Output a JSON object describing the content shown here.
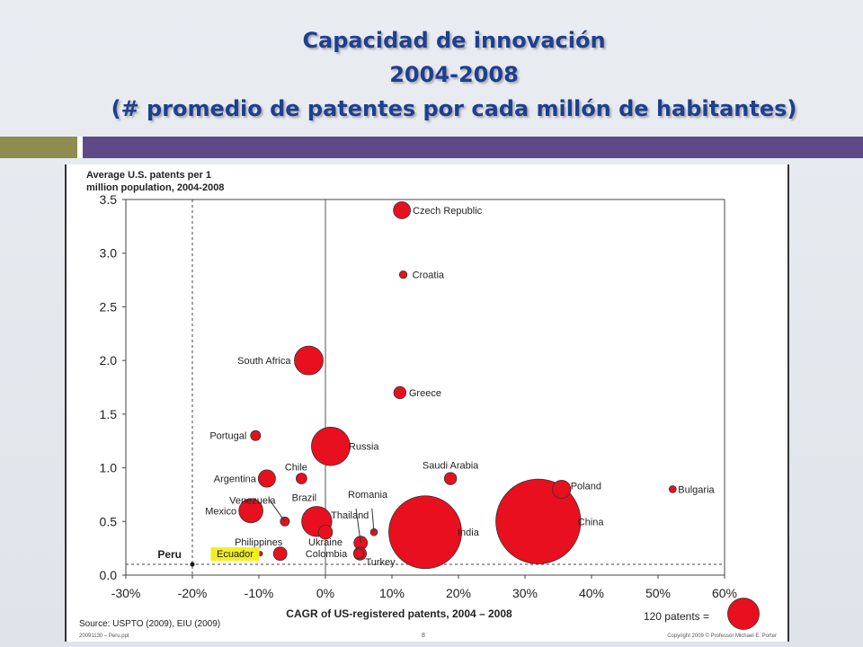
{
  "slide": {
    "title_lines": [
      "Capacidad de innovación",
      "2004-2008",
      "(# promedio de patentes por cada millón de habitantes)"
    ]
  },
  "colors": {
    "title": "#1f3f8f",
    "band_olive": "#8d8d4f",
    "band_purple": "#5e4a86",
    "bubble_fill": "#e8101e"
  },
  "chart_data": {
    "type": "scatter",
    "ylabel": "Average U.S. patents per 1 million population, 2004-2008",
    "xlabel": "CAGR of US-registered patents, 2004 – 2008",
    "xlim": [
      -30,
      60
    ],
    "ylim": [
      0,
      3.5
    ],
    "x_ticks": [
      "-30%",
      "-20%",
      "-10%",
      "0%",
      "10%",
      "20%",
      "30%",
      "40%",
      "50%",
      "60%"
    ],
    "y_ticks": [
      "0.0",
      "0.5",
      "1.0",
      "1.5",
      "2.0",
      "2.5",
      "3.0",
      "3.5"
    ],
    "reference_lines": {
      "x": -20,
      "y": 0.1
    },
    "points": [
      {
        "label": "Czech Republic",
        "x": 11.5,
        "y": 3.4,
        "patents": 35
      },
      {
        "label": "Croatia",
        "x": 11.7,
        "y": 2.8,
        "patents": 7
      },
      {
        "label": "South Africa",
        "x": -2.5,
        "y": 2.0,
        "patents": 100
      },
      {
        "label": "Greece",
        "x": 11.2,
        "y": 1.7,
        "patents": 18
      },
      {
        "label": "Portugal",
        "x": -10.5,
        "y": 1.3,
        "patents": 12
      },
      {
        "label": "Russia",
        "x": 0.8,
        "y": 1.2,
        "patents": 180
      },
      {
        "label": "Chile",
        "x": -3.6,
        "y": 0.9,
        "patents": 14
      },
      {
        "label": "Argentina",
        "x": -8.8,
        "y": 0.9,
        "patents": 36
      },
      {
        "label": "Saudi Arabia",
        "x": 18.8,
        "y": 0.9,
        "patents": 18
      },
      {
        "label": "Poland",
        "x": 35.5,
        "y": 0.8,
        "patents": 40
      },
      {
        "label": "Bulgaria",
        "x": 52.2,
        "y": 0.8,
        "patents": 6
      },
      {
        "label": "Venezuela",
        "x": -6.1,
        "y": 0.5,
        "patents": 10
      },
      {
        "label": "Mexico",
        "x": -11.2,
        "y": 0.6,
        "patents": 70
      },
      {
        "label": "Brazil",
        "x": -1.3,
        "y": 0.5,
        "patents": 110
      },
      {
        "label": "Thailand",
        "x": 5.3,
        "y": 0.3,
        "patents": 22
      },
      {
        "label": "Romania",
        "x": 7.3,
        "y": 0.4,
        "patents": 6
      },
      {
        "label": "India",
        "x": 15.0,
        "y": 0.4,
        "patents": 640
      },
      {
        "label": "China",
        "x": 32.0,
        "y": 0.5,
        "patents": 870
      },
      {
        "label": "Ukraine",
        "x": 0.0,
        "y": 0.4,
        "patents": 24
      },
      {
        "label": "Colombia",
        "x": 5.0,
        "y": 0.2,
        "patents": 12
      },
      {
        "label": "Turkey",
        "x": 5.2,
        "y": 0.2,
        "patents": 20
      },
      {
        "label": "Philippines",
        "x": -6.8,
        "y": 0.2,
        "patents": 22
      },
      {
        "label": "Ecuador",
        "x": -9.8,
        "y": 0.2,
        "patents": 2
      },
      {
        "label": "Peru",
        "x": -20.0,
        "y": 0.1,
        "patents": 1
      }
    ],
    "size_legend": {
      "label": "120 patents =",
      "patents": 120
    },
    "highlight": {
      "label": "Ecuador",
      "color": "#f2ef20"
    },
    "source": "Source: USPTO (2009), EIU (2009)",
    "footer_left": "20091130 – Peru.ppt",
    "footer_page": "8",
    "footer_right": "Copyright 2009 © Professor Michael E. Porter"
  }
}
